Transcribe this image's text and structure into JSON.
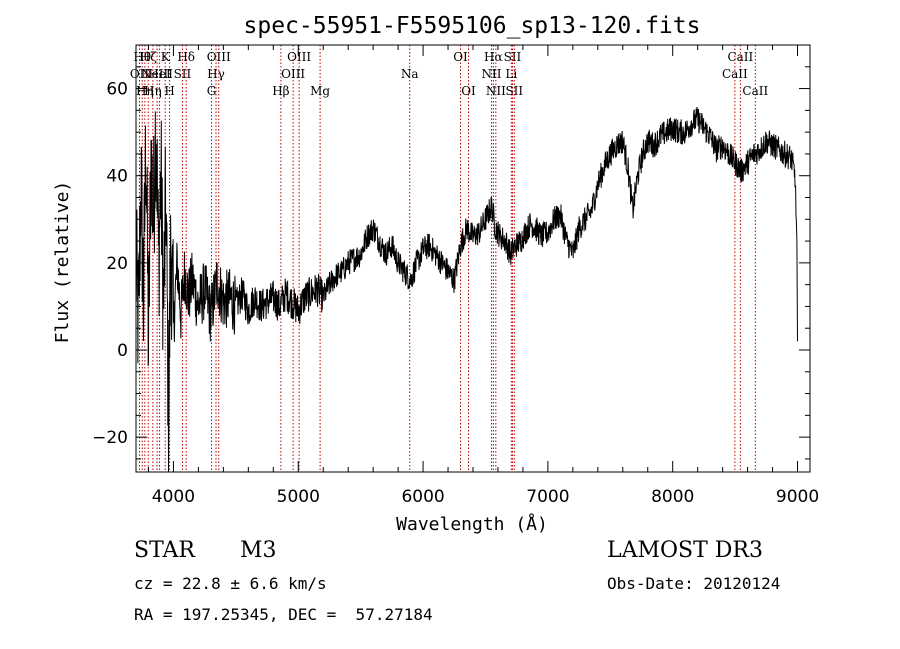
{
  "chart_data": {
    "type": "line",
    "title": "spec-55951-F5595106_sp13-120.fits",
    "xlabel": "Wavelength (Å)",
    "ylabel": "Flux (relative)",
    "xlim": [
      3700,
      9100
    ],
    "ylim": [
      -28,
      70
    ],
    "xticks": [
      4000,
      5000,
      6000,
      7000,
      8000,
      9000
    ],
    "yticks": [
      -20,
      0,
      20,
      40,
      60
    ],
    "series": [
      {
        "name": "flux",
        "x": [
          3700,
          3720,
          3740,
          3760,
          3780,
          3800,
          3820,
          3840,
          3860,
          3880,
          3900,
          3920,
          3940,
          3960,
          3980,
          4000,
          4030,
          4060,
          4090,
          4120,
          4150,
          4200,
          4250,
          4300,
          4350,
          4400,
          4450,
          4500,
          4550,
          4600,
          4650,
          4700,
          4750,
          4800,
          4850,
          4900,
          4950,
          5000,
          5050,
          5100,
          5150,
          5200,
          5250,
          5300,
          5350,
          5400,
          5450,
          5500,
          5550,
          5600,
          5650,
          5700,
          5750,
          5800,
          5850,
          5900,
          5950,
          6000,
          6050,
          6100,
          6150,
          6200,
          6250,
          6300,
          6350,
          6400,
          6450,
          6500,
          6550,
          6580,
          6620,
          6660,
          6700,
          6740,
          6780,
          6820,
          6860,
          6900,
          6950,
          7000,
          7050,
          7100,
          7150,
          7200,
          7250,
          7300,
          7350,
          7400,
          7450,
          7500,
          7550,
          7600,
          7640,
          7680,
          7720,
          7760,
          7800,
          7850,
          7900,
          7950,
          8000,
          8050,
          8100,
          8150,
          8200,
          8250,
          8300,
          8350,
          8400,
          8450,
          8500,
          8550,
          8600,
          8650,
          8700,
          8750,
          8800,
          8850,
          8900,
          8950,
          8980,
          8995,
          9000
        ],
        "values": [
          20,
          5,
          40,
          10,
          50,
          0,
          45,
          30,
          55,
          20,
          40,
          10,
          35,
          -15,
          25,
          5,
          20,
          8,
          18,
          12,
          16,
          10,
          14,
          8,
          16,
          11,
          12,
          10,
          13,
          9,
          12,
          10,
          11,
          12,
          10,
          13,
          11,
          9,
          12,
          13,
          14,
          12,
          15,
          17,
          18,
          20,
          21,
          22,
          26,
          28,
          25,
          22,
          24,
          20,
          18,
          16,
          20,
          23,
          24,
          22,
          20,
          18,
          16,
          24,
          28,
          26,
          27,
          30,
          33,
          28,
          26,
          25,
          22,
          24,
          25,
          27,
          29,
          28,
          26,
          27,
          30,
          31,
          25,
          22,
          28,
          30,
          32,
          38,
          42,
          45,
          47,
          48,
          42,
          32,
          40,
          45,
          48,
          47,
          49,
          50,
          51,
          50,
          50,
          52,
          53,
          51,
          49,
          46,
          47,
          45,
          43,
          41,
          43,
          45,
          46,
          48,
          47,
          46,
          45,
          44,
          40,
          25,
          2
        ]
      }
    ],
    "lines": [
      {
        "wl": 3728,
        "label": "OII",
        "row": 2
      },
      {
        "wl": 3750,
        "label": "Hθ",
        "row": 1
      },
      {
        "wl": 3771,
        "label": "Hη",
        "row": 3
      },
      {
        "wl": 3798,
        "label": "Hζ",
        "row": 1
      },
      {
        "wl": 3835,
        "label": "Hη",
        "row": 3
      },
      {
        "wl": 3869,
        "label": "NeIII",
        "row": 2
      },
      {
        "wl": 3889,
        "label": "HeI",
        "row": 2
      },
      {
        "wl": 3934,
        "label": "K",
        "row": 1
      },
      {
        "wl": 3969,
        "label": "H",
        "row": 3
      },
      {
        "wl": 4072,
        "label": "SII",
        "row": 2
      },
      {
        "wl": 4102,
        "label": "Hδ",
        "row": 1
      },
      {
        "wl": 4305,
        "label": "G",
        "row": 3
      },
      {
        "wl": 4341,
        "label": "Hγ",
        "row": 2
      },
      {
        "wl": 4363,
        "label": "OIII",
        "row": 1
      },
      {
        "wl": 4861,
        "label": "Hβ",
        "row": 3
      },
      {
        "wl": 4959,
        "label": "OIII",
        "row": 2
      },
      {
        "wl": 5007,
        "label": "OIII",
        "row": 1
      },
      {
        "wl": 5175,
        "label": "Mg",
        "row": 3
      },
      {
        "wl": 5893,
        "label": "Na",
        "row": 2
      },
      {
        "wl": 6300,
        "label": "OI",
        "row": 1
      },
      {
        "wl": 6364,
        "label": "OI",
        "row": 3
      },
      {
        "wl": 6548,
        "label": "NII",
        "row": 2
      },
      {
        "wl": 6563,
        "label": "Hα",
        "row": 1
      },
      {
        "wl": 6583,
        "label": "NII",
        "row": 3
      },
      {
        "wl": 6707,
        "label": "Li",
        "row": 2
      },
      {
        "wl": 6716,
        "label": "SII",
        "row": 1
      },
      {
        "wl": 6731,
        "label": "SII",
        "row": 3
      },
      {
        "wl": 8498,
        "label": "CaII",
        "row": 2
      },
      {
        "wl": 8542,
        "label": "CaII",
        "row": 1
      },
      {
        "wl": 8662,
        "label": "CaII",
        "row": 3
      }
    ]
  },
  "info": {
    "class": "STAR",
    "subclass": "M3",
    "survey": "LAMOST DR3",
    "cz": "cz = 22.8 ± 6.6 km/s",
    "obs_date": "Obs-Date: 20120124",
    "radec": "RA = 197.25345, DEC =  57.27184"
  }
}
